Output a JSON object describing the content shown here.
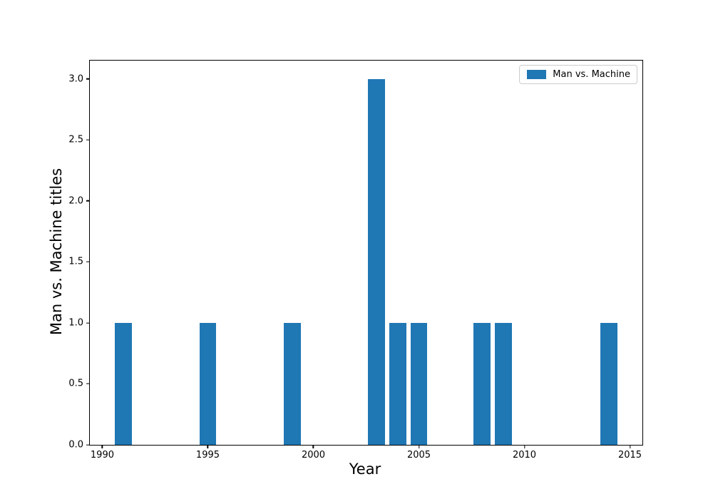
{
  "figure": {
    "background": "#ffffff",
    "spine_color": "#000000",
    "text_color": "#000000",
    "legend_border_color": "#cccccc"
  },
  "chart_data": {
    "type": "bar",
    "title": "",
    "xlabel": "Year",
    "ylabel": "Man vs. Machine titles",
    "series": [
      {
        "name": "Man vs. Machine",
        "color": "#1f77b4",
        "x": [
          1991,
          1995,
          1999,
          2003,
          2004,
          2005,
          2008,
          2009,
          2014
        ],
        "values": [
          1,
          1,
          1,
          3,
          1,
          1,
          1,
          1,
          1
        ]
      }
    ],
    "bar_width_years": 0.8,
    "xlim": [
      1989.41,
      2015.59
    ],
    "ylim": [
      0,
      3.15
    ],
    "xticks": [
      1990,
      1995,
      2000,
      2005,
      2010,
      2015
    ],
    "xtick_labels": [
      "1990",
      "1995",
      "2000",
      "2005",
      "2010",
      "2015"
    ],
    "yticks": [
      0.0,
      0.5,
      1.0,
      1.5,
      2.0,
      2.5,
      3.0
    ],
    "ytick_labels": [
      "0.0",
      "0.5",
      "1.0",
      "1.5",
      "2.0",
      "2.5",
      "3.0"
    ],
    "grid": false,
    "legend": {
      "position": "upper right",
      "entries": [
        {
          "label": "Man vs. Machine",
          "color": "#1f77b4"
        }
      ]
    }
  }
}
